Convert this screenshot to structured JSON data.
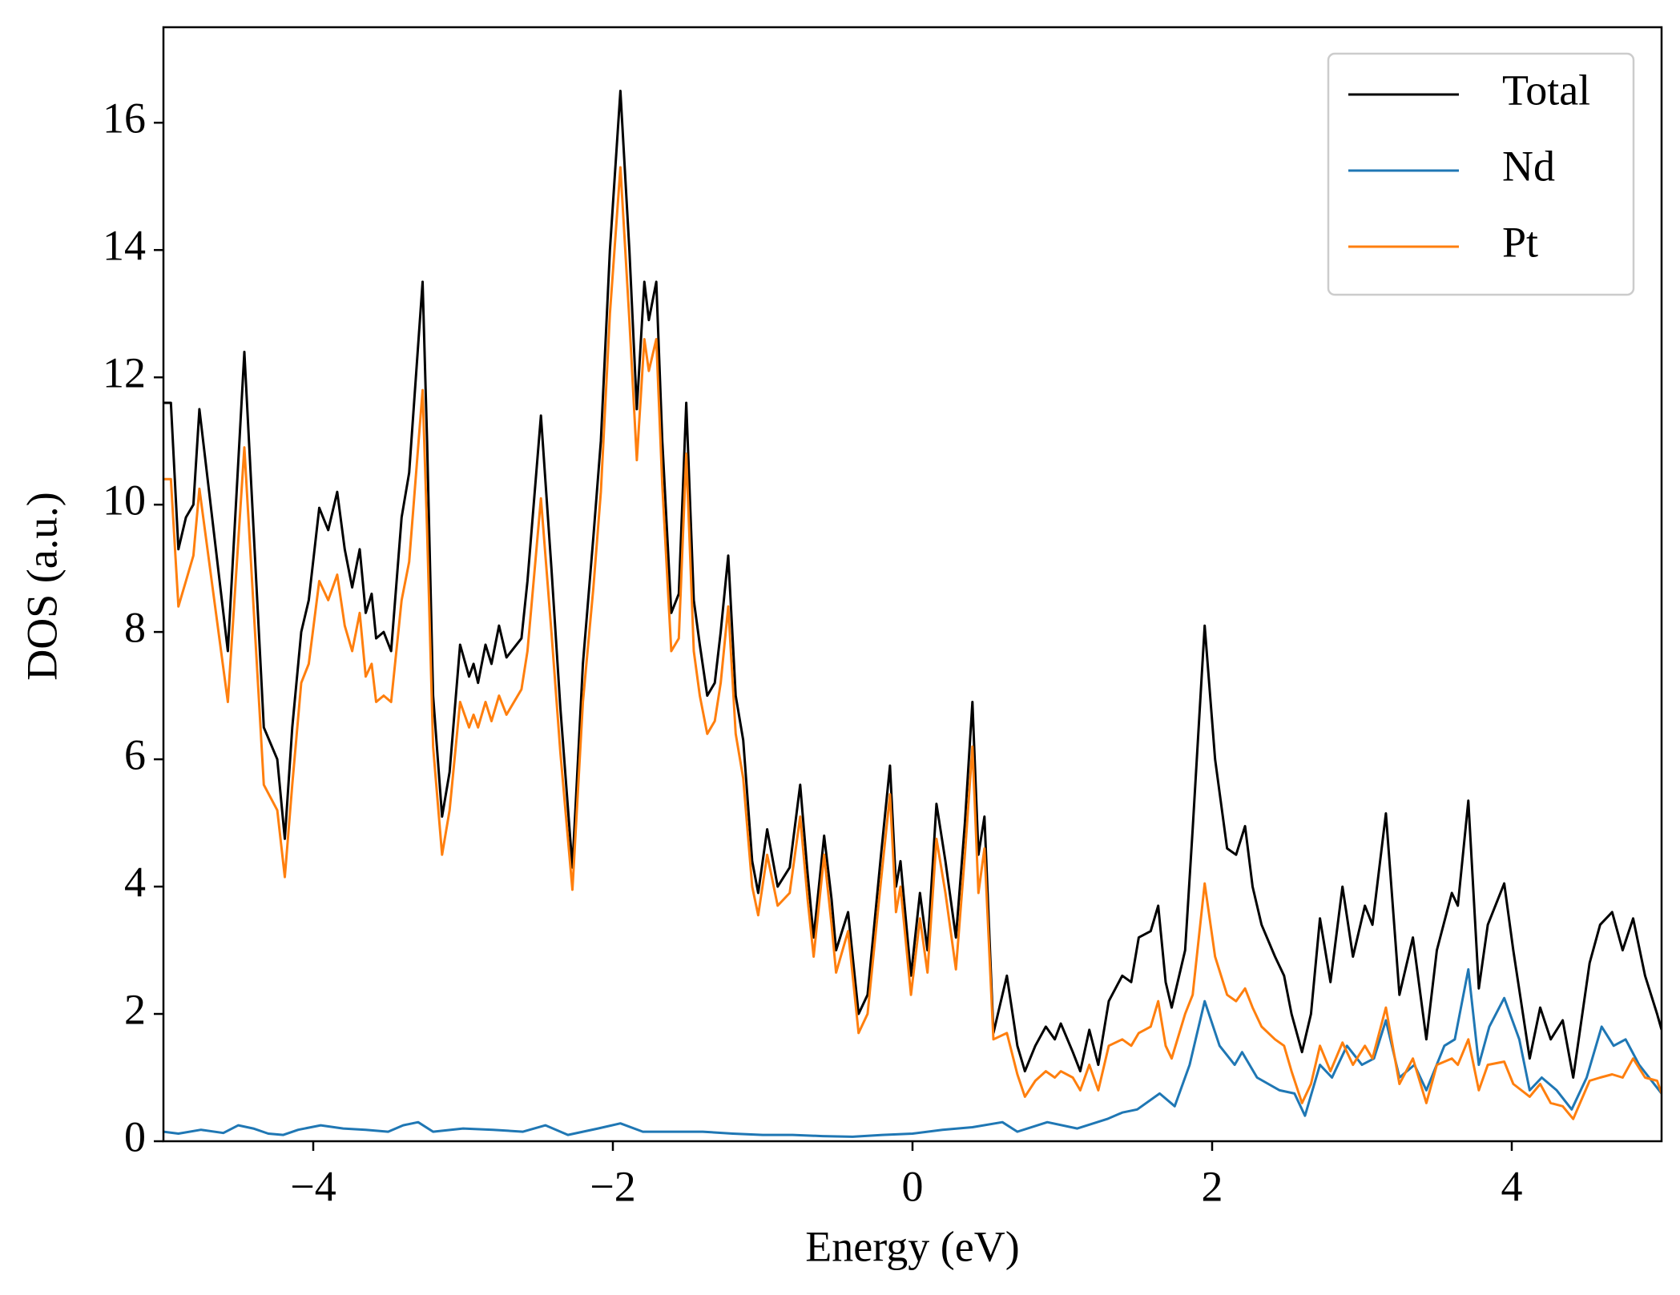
{
  "chart_data": {
    "type": "line",
    "xlabel": "Energy (eV)",
    "ylabel": "DOS (a.u.)",
    "xlim": [
      -5,
      5
    ],
    "ylim": [
      0,
      17.5
    ],
    "xticks": [
      {
        "value": -4,
        "label": "−4"
      },
      {
        "value": -2,
        "label": "−2"
      },
      0,
      2,
      4
    ],
    "yticks": [
      0,
      2,
      4,
      6,
      8,
      10,
      12,
      14,
      16
    ],
    "legend": "upper right",
    "x": [
      -5,
      -4.95,
      -4.9,
      -4.85,
      -4.8,
      -4.76,
      -4.57,
      -4.46,
      -4.33,
      -4.24,
      -4.19,
      -4.14,
      -4.08,
      -4.03,
      -3.96,
      -3.9,
      -3.84,
      -3.79,
      -3.74,
      -3.69,
      -3.65,
      -3.61,
      -3.58,
      -3.53,
      -3.48,
      -3.41,
      -3.36,
      -3.27,
      -3.24,
      -3.2,
      -3.14,
      -3.09,
      -3.02,
      -2.96,
      -2.93,
      -2.9,
      -2.85,
      -2.81,
      -2.76,
      -2.71,
      -2.61,
      -2.57,
      -2.48,
      -2.41,
      -2.35,
      -2.27,
      -2.2,
      -2.13,
      -2.08,
      -2.02,
      -1.95,
      -1.89,
      -1.84,
      -1.79,
      -1.76,
      -1.71,
      -1.67,
      -1.61,
      -1.56,
      -1.51,
      -1.46,
      -1.42,
      -1.37,
      -1.32,
      -1.28,
      -1.23,
      -1.18,
      -1.13,
      -1.07,
      -1.03,
      -0.97,
      -0.9,
      -0.82,
      -0.75,
      -0.7,
      -0.66,
      -0.59,
      -0.54,
      -0.51,
      -0.43,
      -0.36,
      -0.3,
      -0.21,
      -0.15,
      -0.11,
      -0.08,
      -0.01,
      0.05,
      0.1,
      0.16,
      0.22,
      0.29,
      0.35,
      0.4,
      0.44,
      0.48,
      0.54,
      0.63,
      0.7,
      0.75,
      0.82,
      0.89,
      0.95,
      0.99,
      1.07,
      1.12,
      1.18,
      1.24,
      1.31,
      1.4,
      1.46,
      1.51,
      1.59,
      1.64,
      1.69,
      1.73,
      1.82,
      1.87,
      1.95,
      2.02,
      2.1,
      2.16,
      2.22,
      2.27,
      2.33,
      2.42,
      2.48,
      2.53,
      2.6,
      2.66,
      2.72,
      2.79,
      2.87,
      2.94,
      3.02,
      3.07,
      3.16,
      3.25,
      3.34,
      3.43,
      3.5,
      3.6,
      3.64,
      3.71,
      3.78,
      3.84,
      3.95,
      4.01,
      4.12,
      4.19,
      4.26,
      4.34,
      4.41,
      4.52,
      4.59,
      4.67,
      4.74,
      4.81,
      4.89,
      4.97,
      5
    ],
    "series": [
      {
        "name": "Total",
        "color": "#000000",
        "values": [
          11.6,
          11.6,
          9.3,
          9.8,
          10.0,
          11.5,
          7.7,
          12.4,
          6.5,
          6.0,
          4.75,
          6.5,
          8.0,
          8.5,
          9.95,
          9.6,
          10.2,
          9.3,
          8.7,
          9.3,
          8.3,
          8.6,
          7.9,
          8.0,
          7.7,
          9.8,
          10.5,
          13.5,
          11,
          7,
          5.1,
          5.8,
          7.8,
          7.3,
          7.5,
          7.2,
          7.8,
          7.5,
          8.1,
          7.6,
          7.9,
          8.8,
          11.4,
          9,
          6.8,
          4.3,
          7.5,
          9.5,
          11,
          14,
          16.5,
          14,
          11.5,
          13.5,
          12.9,
          13.5,
          11,
          8.3,
          8.6,
          11.6,
          8.5,
          7.8,
          7.0,
          7.2,
          8,
          9.2,
          7,
          6.3,
          4.4,
          3.9,
          4.9,
          4.0,
          4.3,
          5.6,
          4.2,
          3.2,
          4.8,
          3.8,
          3.0,
          3.6,
          2.0,
          2.3,
          4.5,
          5.9,
          4.0,
          4.4,
          2.6,
          3.9,
          3.0,
          5.3,
          4.4,
          3.2,
          5.0,
          6.9,
          4.5,
          5.1,
          1.7,
          2.6,
          1.5,
          1.1,
          1.5,
          1.8,
          1.6,
          1.85,
          1.4,
          1.1,
          1.75,
          1.2,
          2.2,
          2.6,
          2.5,
          3.2,
          3.3,
          3.7,
          2.5,
          2.1,
          3.0,
          4.9,
          8.1,
          6,
          4.6,
          4.5,
          4.95,
          4.0,
          3.4,
          2.9,
          2.6,
          2.0,
          1.4,
          2.0,
          3.5,
          2.5,
          4.0,
          2.9,
          3.7,
          3.4,
          5.15,
          2.3,
          3.2,
          1.6,
          3.0,
          3.9,
          3.7,
          5.35,
          2.4,
          3.4,
          4.05,
          3.0,
          1.3,
          2.1,
          1.6,
          1.9,
          1.0,
          2.8,
          3.4,
          3.6,
          3.0,
          3.5,
          2.6,
          2.0,
          1.75
        ]
      },
      {
        "name": "Nd",
        "color": "#1f77b4",
        "x": [
          -5,
          -4.9,
          -4.75,
          -4.6,
          -4.5,
          -4.4,
          -4.3,
          -4.2,
          -4.1,
          -3.95,
          -3.8,
          -3.65,
          -3.5,
          -3.4,
          -3.3,
          -3.2,
          -3.0,
          -2.8,
          -2.6,
          -2.45,
          -2.3,
          -2.1,
          -1.95,
          -1.8,
          -1.6,
          -1.4,
          -1.2,
          -1.0,
          -0.8,
          -0.6,
          -0.4,
          -0.2,
          0,
          0.2,
          0.4,
          0.6,
          0.7,
          0.9,
          1.1,
          1.3,
          1.4,
          1.5,
          1.65,
          1.75,
          1.85,
          1.95,
          2.05,
          2.15,
          2.2,
          2.3,
          2.45,
          2.55,
          2.62,
          2.72,
          2.8,
          2.9,
          3.0,
          3.08,
          3.16,
          3.25,
          3.35,
          3.43,
          3.55,
          3.62,
          3.71,
          3.78,
          3.85,
          3.95,
          4.05,
          4.12,
          4.2,
          4.3,
          4.4,
          4.5,
          4.6,
          4.68,
          4.76,
          4.85,
          5
        ],
        "values": [
          0.15,
          0.12,
          0.18,
          0.13,
          0.25,
          0.2,
          0.12,
          0.1,
          0.18,
          0.25,
          0.2,
          0.18,
          0.15,
          0.25,
          0.3,
          0.15,
          0.2,
          0.18,
          0.15,
          0.25,
          0.1,
          0.2,
          0.28,
          0.15,
          0.15,
          0.15,
          0.12,
          0.1,
          0.1,
          0.08,
          0.07,
          0.1,
          0.12,
          0.18,
          0.22,
          0.3,
          0.15,
          0.3,
          0.2,
          0.35,
          0.45,
          0.5,
          0.75,
          0.55,
          1.2,
          2.2,
          1.5,
          1.2,
          1.4,
          1.0,
          0.8,
          0.75,
          0.4,
          1.2,
          1.0,
          1.5,
          1.2,
          1.3,
          1.9,
          1.0,
          1.2,
          0.8,
          1.5,
          1.6,
          2.7,
          1.2,
          1.8,
          2.25,
          1.6,
          0.8,
          1.0,
          0.8,
          0.5,
          1.0,
          1.8,
          1.5,
          1.6,
          1.2,
          0.75
        ]
      },
      {
        "name": "Pt",
        "color": "#ff7f0e",
        "values": [
          10.4,
          10.4,
          8.4,
          8.8,
          9.2,
          10.25,
          6.9,
          10.9,
          5.6,
          5.2,
          4.15,
          5.6,
          7.2,
          7.5,
          8.8,
          8.5,
          8.9,
          8.1,
          7.7,
          8.3,
          7.3,
          7.5,
          6.9,
          7.0,
          6.9,
          8.5,
          9.1,
          11.8,
          9.6,
          6.2,
          4.5,
          5.2,
          6.9,
          6.5,
          6.7,
          6.5,
          6.9,
          6.6,
          7.0,
          6.7,
          7.1,
          7.7,
          10.1,
          8.0,
          6.1,
          3.95,
          6.9,
          8.7,
          10.2,
          13,
          15.3,
          12.9,
          10.7,
          12.6,
          12.1,
          12.6,
          10.3,
          7.7,
          7.9,
          10.8,
          7.7,
          7.0,
          6.4,
          6.6,
          7.2,
          8.4,
          6.4,
          5.7,
          4.0,
          3.55,
          4.5,
          3.7,
          3.9,
          5.1,
          3.8,
          2.9,
          4.5,
          3.4,
          2.65,
          3.3,
          1.7,
          2.0,
          4.1,
          5.45,
          3.6,
          4.0,
          2.3,
          3.5,
          2.65,
          4.75,
          3.9,
          2.7,
          4.5,
          6.2,
          3.9,
          4.6,
          1.6,
          1.7,
          1.05,
          0.7,
          0.95,
          1.1,
          1.0,
          1.1,
          1.0,
          0.8,
          1.2,
          0.8,
          1.5,
          1.6,
          1.5,
          1.7,
          1.8,
          2.2,
          1.5,
          1.3,
          2.0,
          2.3,
          4.05,
          2.9,
          2.3,
          2.2,
          2.4,
          2.1,
          1.8,
          1.6,
          1.5,
          1.1,
          0.6,
          0.9,
          1.5,
          1.1,
          1.55,
          1.2,
          1.5,
          1.3,
          2.1,
          0.9,
          1.3,
          0.6,
          1.2,
          1.3,
          1.2,
          1.6,
          0.8,
          1.2,
          1.25,
          0.9,
          0.7,
          0.9,
          0.6,
          0.55,
          0.35,
          0.95,
          1.0,
          1.05,
          1.0,
          1.3,
          1.0,
          0.95,
          0.75
        ]
      }
    ]
  }
}
